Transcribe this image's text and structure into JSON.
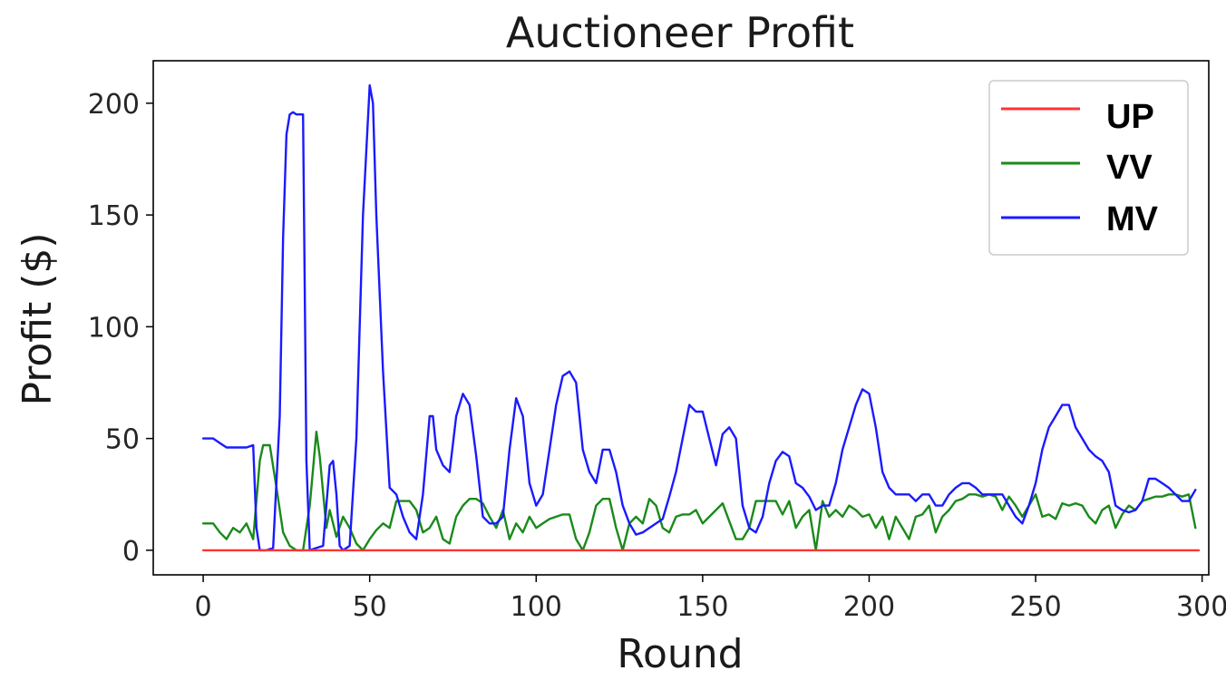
{
  "chart_data": {
    "type": "line",
    "title": "Auctioneer Profit",
    "xlabel": "Round",
    "ylabel": "Profit ($)",
    "xlim": [
      -15,
      302
    ],
    "ylim": [
      -11,
      219
    ],
    "xticks": [
      0,
      50,
      100,
      150,
      200,
      250,
      300
    ],
    "yticks": [
      0,
      50,
      100,
      150,
      200
    ],
    "grid": false,
    "legend_position": "top-right",
    "colors": {
      "UP": "#ff3333",
      "VV": "#1a8a1a",
      "MV": "#1a1aff"
    },
    "series": [
      {
        "name": "UP",
        "points": [
          [
            0,
            0
          ],
          [
            299,
            0
          ]
        ]
      },
      {
        "name": "VV",
        "points": [
          [
            0,
            12
          ],
          [
            3,
            12
          ],
          [
            5,
            8
          ],
          [
            7,
            5
          ],
          [
            9,
            10
          ],
          [
            11,
            8
          ],
          [
            13,
            12
          ],
          [
            15,
            5
          ],
          [
            17,
            40
          ],
          [
            18,
            47
          ],
          [
            20,
            47
          ],
          [
            22,
            28
          ],
          [
            24,
            8
          ],
          [
            26,
            2
          ],
          [
            28,
            0
          ],
          [
            30,
            0
          ],
          [
            32,
            20
          ],
          [
            34,
            53
          ],
          [
            35,
            42
          ],
          [
            37,
            10
          ],
          [
            38,
            18
          ],
          [
            40,
            6
          ],
          [
            42,
            15
          ],
          [
            44,
            10
          ],
          [
            46,
            3
          ],
          [
            48,
            0
          ],
          [
            50,
            5
          ],
          [
            52,
            9
          ],
          [
            54,
            12
          ],
          [
            56,
            10
          ],
          [
            58,
            22
          ],
          [
            60,
            22
          ],
          [
            62,
            22
          ],
          [
            64,
            18
          ],
          [
            66,
            8
          ],
          [
            68,
            10
          ],
          [
            70,
            15
          ],
          [
            72,
            5
          ],
          [
            74,
            3
          ],
          [
            76,
            15
          ],
          [
            78,
            20
          ],
          [
            80,
            23
          ],
          [
            82,
            23
          ],
          [
            84,
            21
          ],
          [
            86,
            15
          ],
          [
            88,
            10
          ],
          [
            90,
            18
          ],
          [
            92,
            5
          ],
          [
            94,
            12
          ],
          [
            96,
            8
          ],
          [
            98,
            15
          ],
          [
            100,
            10
          ],
          [
            102,
            12
          ],
          [
            104,
            14
          ],
          [
            106,
            15
          ],
          [
            108,
            16
          ],
          [
            110,
            16
          ],
          [
            112,
            5
          ],
          [
            114,
            0
          ],
          [
            116,
            8
          ],
          [
            118,
            20
          ],
          [
            120,
            23
          ],
          [
            122,
            23
          ],
          [
            124,
            10
          ],
          [
            126,
            0
          ],
          [
            128,
            12
          ],
          [
            130,
            15
          ],
          [
            132,
            12
          ],
          [
            134,
            23
          ],
          [
            136,
            20
          ],
          [
            138,
            10
          ],
          [
            140,
            8
          ],
          [
            142,
            15
          ],
          [
            144,
            16
          ],
          [
            146,
            16
          ],
          [
            148,
            18
          ],
          [
            150,
            12
          ],
          [
            152,
            15
          ],
          [
            154,
            18
          ],
          [
            156,
            21
          ],
          [
            158,
            13
          ],
          [
            160,
            5
          ],
          [
            162,
            5
          ],
          [
            164,
            10
          ],
          [
            166,
            22
          ],
          [
            168,
            22
          ],
          [
            170,
            22
          ],
          [
            172,
            22
          ],
          [
            174,
            16
          ],
          [
            176,
            22
          ],
          [
            178,
            10
          ],
          [
            180,
            15
          ],
          [
            182,
            18
          ],
          [
            184,
            0
          ],
          [
            186,
            22
          ],
          [
            188,
            15
          ],
          [
            190,
            18
          ],
          [
            192,
            15
          ],
          [
            194,
            20
          ],
          [
            196,
            18
          ],
          [
            198,
            15
          ],
          [
            200,
            16
          ],
          [
            202,
            10
          ],
          [
            204,
            15
          ],
          [
            206,
            5
          ],
          [
            208,
            15
          ],
          [
            210,
            10
          ],
          [
            212,
            5
          ],
          [
            214,
            15
          ],
          [
            216,
            16
          ],
          [
            218,
            20
          ],
          [
            220,
            8
          ],
          [
            222,
            15
          ],
          [
            224,
            18
          ],
          [
            226,
            22
          ],
          [
            228,
            23
          ],
          [
            230,
            25
          ],
          [
            232,
            25
          ],
          [
            234,
            24
          ],
          [
            236,
            25
          ],
          [
            238,
            24
          ],
          [
            240,
            18
          ],
          [
            242,
            24
          ],
          [
            244,
            20
          ],
          [
            246,
            15
          ],
          [
            248,
            20
          ],
          [
            250,
            25
          ],
          [
            252,
            15
          ],
          [
            254,
            16
          ],
          [
            256,
            14
          ],
          [
            258,
            21
          ],
          [
            260,
            20
          ],
          [
            262,
            21
          ],
          [
            264,
            20
          ],
          [
            266,
            15
          ],
          [
            268,
            12
          ],
          [
            270,
            18
          ],
          [
            272,
            20
          ],
          [
            274,
            10
          ],
          [
            276,
            16
          ],
          [
            278,
            20
          ],
          [
            280,
            18
          ],
          [
            282,
            22
          ],
          [
            284,
            23
          ],
          [
            286,
            24
          ],
          [
            288,
            24
          ],
          [
            290,
            25
          ],
          [
            292,
            25
          ],
          [
            294,
            24
          ],
          [
            296,
            25
          ],
          [
            298,
            10
          ]
        ]
      },
      {
        "name": "MV",
        "points": [
          [
            0,
            50
          ],
          [
            3,
            50
          ],
          [
            5,
            48
          ],
          [
            7,
            46
          ],
          [
            9,
            46
          ],
          [
            11,
            46
          ],
          [
            13,
            46
          ],
          [
            15,
            47
          ],
          [
            16,
            10
          ],
          [
            17,
            0
          ],
          [
            19,
            0
          ],
          [
            21,
            1
          ],
          [
            23,
            60
          ],
          [
            24,
            140
          ],
          [
            25,
            186
          ],
          [
            26,
            195
          ],
          [
            27,
            196
          ],
          [
            28,
            195
          ],
          [
            30,
            195
          ],
          [
            31,
            40
          ],
          [
            32,
            0
          ],
          [
            34,
            1
          ],
          [
            36,
            2
          ],
          [
            37,
            20
          ],
          [
            38,
            38
          ],
          [
            39,
            40
          ],
          [
            40,
            25
          ],
          [
            41,
            2
          ],
          [
            42,
            0
          ],
          [
            44,
            2
          ],
          [
            46,
            50
          ],
          [
            48,
            150
          ],
          [
            50,
            208
          ],
          [
            51,
            200
          ],
          [
            52,
            150
          ],
          [
            54,
            80
          ],
          [
            56,
            28
          ],
          [
            58,
            25
          ],
          [
            60,
            15
          ],
          [
            62,
            8
          ],
          [
            64,
            5
          ],
          [
            66,
            25
          ],
          [
            68,
            60
          ],
          [
            69,
            60
          ],
          [
            70,
            45
          ],
          [
            72,
            38
          ],
          [
            74,
            35
          ],
          [
            76,
            60
          ],
          [
            78,
            70
          ],
          [
            80,
            65
          ],
          [
            82,
            42
          ],
          [
            84,
            15
          ],
          [
            86,
            12
          ],
          [
            88,
            12
          ],
          [
            90,
            15
          ],
          [
            92,
            45
          ],
          [
            94,
            68
          ],
          [
            96,
            60
          ],
          [
            98,
            30
          ],
          [
            100,
            20
          ],
          [
            102,
            25
          ],
          [
            104,
            45
          ],
          [
            106,
            65
          ],
          [
            108,
            78
          ],
          [
            110,
            80
          ],
          [
            112,
            75
          ],
          [
            114,
            45
          ],
          [
            116,
            35
          ],
          [
            118,
            30
          ],
          [
            120,
            45
          ],
          [
            122,
            45
          ],
          [
            124,
            35
          ],
          [
            126,
            20
          ],
          [
            128,
            12
          ],
          [
            130,
            7
          ],
          [
            132,
            8
          ],
          [
            134,
            10
          ],
          [
            136,
            12
          ],
          [
            138,
            14
          ],
          [
            140,
            24
          ],
          [
            142,
            35
          ],
          [
            144,
            50
          ],
          [
            146,
            65
          ],
          [
            148,
            62
          ],
          [
            150,
            62
          ],
          [
            152,
            50
          ],
          [
            154,
            38
          ],
          [
            156,
            52
          ],
          [
            158,
            55
          ],
          [
            160,
            50
          ],
          [
            162,
            20
          ],
          [
            164,
            10
          ],
          [
            166,
            8
          ],
          [
            168,
            15
          ],
          [
            170,
            30
          ],
          [
            172,
            40
          ],
          [
            174,
            44
          ],
          [
            176,
            42
          ],
          [
            178,
            30
          ],
          [
            180,
            28
          ],
          [
            182,
            24
          ],
          [
            184,
            18
          ],
          [
            186,
            20
          ],
          [
            188,
            20
          ],
          [
            190,
            30
          ],
          [
            192,
            45
          ],
          [
            194,
            55
          ],
          [
            196,
            65
          ],
          [
            198,
            72
          ],
          [
            200,
            70
          ],
          [
            202,
            55
          ],
          [
            204,
            35
          ],
          [
            206,
            28
          ],
          [
            208,
            25
          ],
          [
            210,
            25
          ],
          [
            212,
            25
          ],
          [
            214,
            22
          ],
          [
            216,
            25
          ],
          [
            218,
            25
          ],
          [
            220,
            20
          ],
          [
            222,
            20
          ],
          [
            224,
            25
          ],
          [
            226,
            28
          ],
          [
            228,
            30
          ],
          [
            230,
            30
          ],
          [
            232,
            28
          ],
          [
            234,
            25
          ],
          [
            236,
            25
          ],
          [
            238,
            25
          ],
          [
            240,
            25
          ],
          [
            242,
            20
          ],
          [
            244,
            15
          ],
          [
            246,
            12
          ],
          [
            248,
            20
          ],
          [
            250,
            30
          ],
          [
            252,
            45
          ],
          [
            254,
            55
          ],
          [
            256,
            60
          ],
          [
            258,
            65
          ],
          [
            260,
            65
          ],
          [
            262,
            55
          ],
          [
            264,
            50
          ],
          [
            266,
            45
          ],
          [
            268,
            42
          ],
          [
            270,
            40
          ],
          [
            272,
            35
          ],
          [
            274,
            20
          ],
          [
            276,
            18
          ],
          [
            278,
            17
          ],
          [
            280,
            18
          ],
          [
            282,
            22
          ],
          [
            284,
            32
          ],
          [
            286,
            32
          ],
          [
            288,
            30
          ],
          [
            290,
            28
          ],
          [
            292,
            25
          ],
          [
            294,
            22
          ],
          [
            296,
            22
          ],
          [
            298,
            27
          ]
        ]
      }
    ]
  }
}
